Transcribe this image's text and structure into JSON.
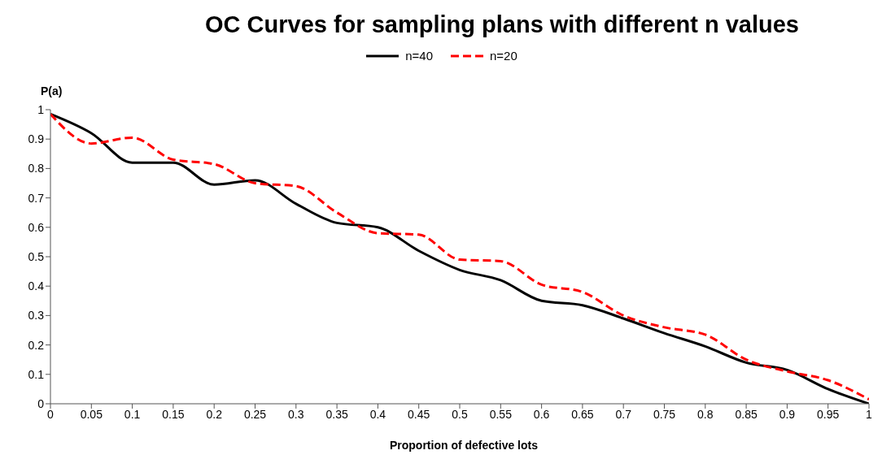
{
  "chart_data": {
    "type": "line",
    "title": "OC Curves for sampling plans with different n values",
    "xlabel": "Proportion  of defective lots",
    "ylabel": "P(a)",
    "x": [
      0,
      0.05,
      0.1,
      0.15,
      0.2,
      0.25,
      0.3,
      0.35,
      0.4,
      0.45,
      0.5,
      0.55,
      0.6,
      0.65,
      0.7,
      0.75,
      0.8,
      0.85,
      0.9,
      0.95,
      1
    ],
    "series": [
      {
        "name": "n=40",
        "color": "#000000",
        "line_style": "solid",
        "values": [
          0.985,
          0.92,
          0.82,
          0.82,
          0.745,
          0.76,
          0.68,
          0.615,
          0.6,
          0.52,
          0.455,
          0.42,
          0.35,
          0.335,
          0.29,
          0.24,
          0.195,
          0.14,
          0.115,
          0.05,
          0
        ]
      },
      {
        "name": "n=20",
        "color": "#ff0000",
        "line_style": "dashed",
        "values": [
          0.985,
          0.885,
          0.905,
          0.83,
          0.815,
          0.75,
          0.74,
          0.65,
          0.58,
          0.575,
          0.49,
          0.485,
          0.405,
          0.38,
          0.3,
          0.26,
          0.235,
          0.15,
          0.11,
          0.08,
          0.015
        ]
      }
    ],
    "xlim": [
      0,
      1
    ],
    "xticks": [
      0,
      0.05,
      0.1,
      0.15,
      0.2,
      0.25,
      0.3,
      0.35,
      0.4,
      0.45,
      0.5,
      0.55,
      0.6,
      0.65,
      0.7,
      0.75,
      0.8,
      0.85,
      0.9,
      0.95,
      1
    ],
    "ylim": [
      0,
      1
    ],
    "yticks": [
      0,
      0.1,
      0.2,
      0.3,
      0.4,
      0.5,
      0.6,
      0.7,
      0.8,
      0.9,
      1
    ],
    "grid": false,
    "legend": "top",
    "marker": "none"
  }
}
